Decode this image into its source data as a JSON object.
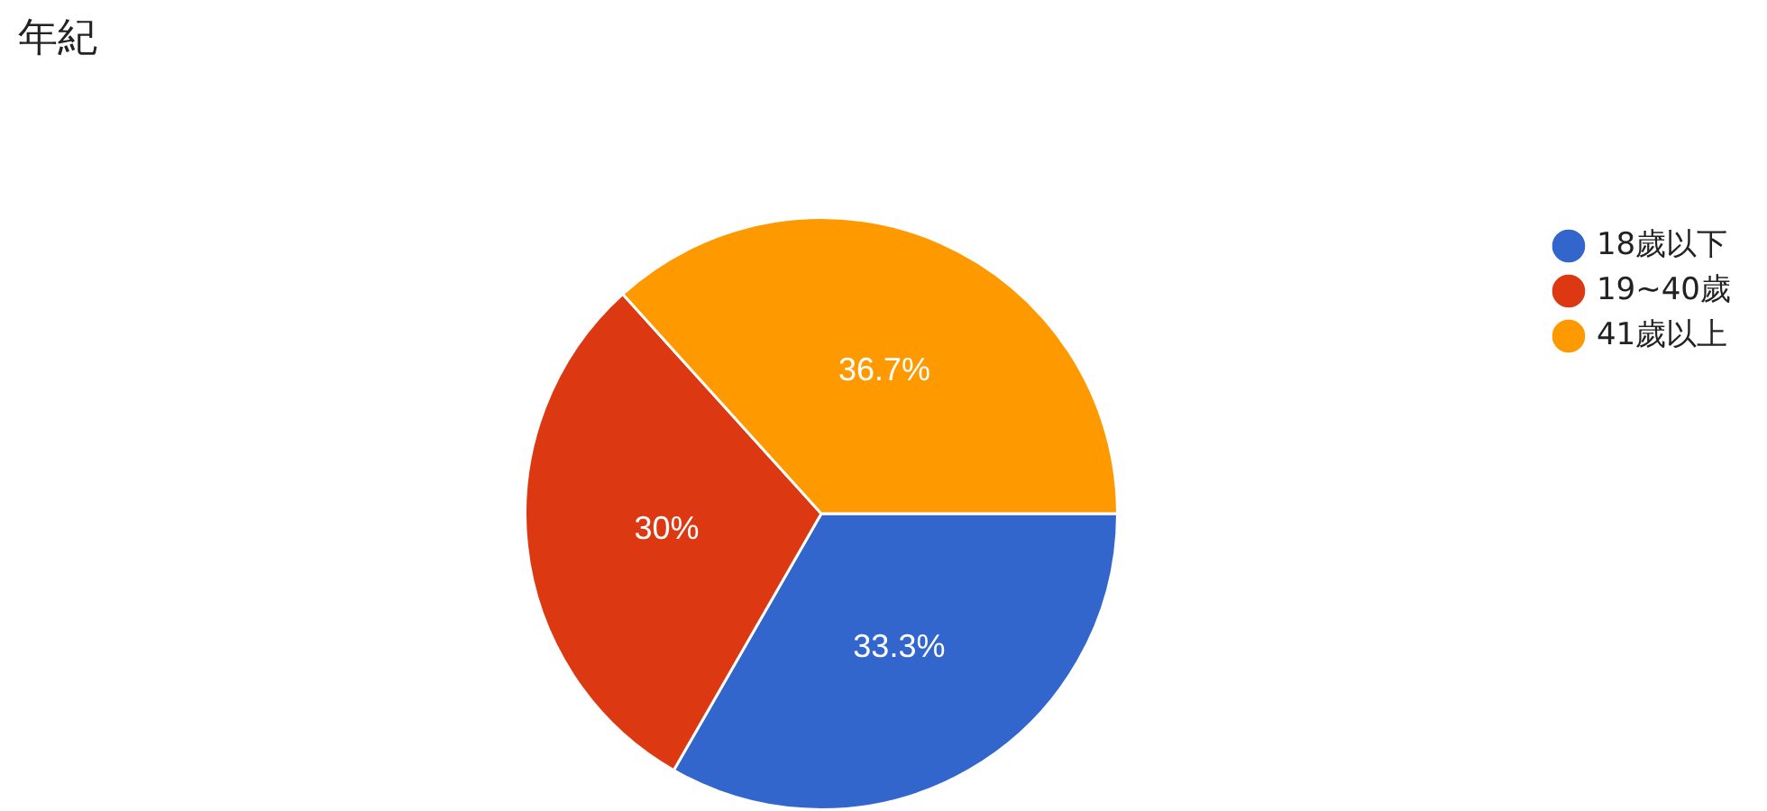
{
  "chart_data": {
    "type": "pie",
    "title": "年紀",
    "categories": [
      "18歲以下",
      "19~40歲",
      "41歲以上"
    ],
    "values": [
      33.3,
      30,
      36.7
    ],
    "colors": [
      "#3366cc",
      "#dc3912",
      "#ff9900"
    ],
    "value_labels": [
      "33.3%",
      "30%",
      "36.7%"
    ],
    "legend": "top right"
  }
}
